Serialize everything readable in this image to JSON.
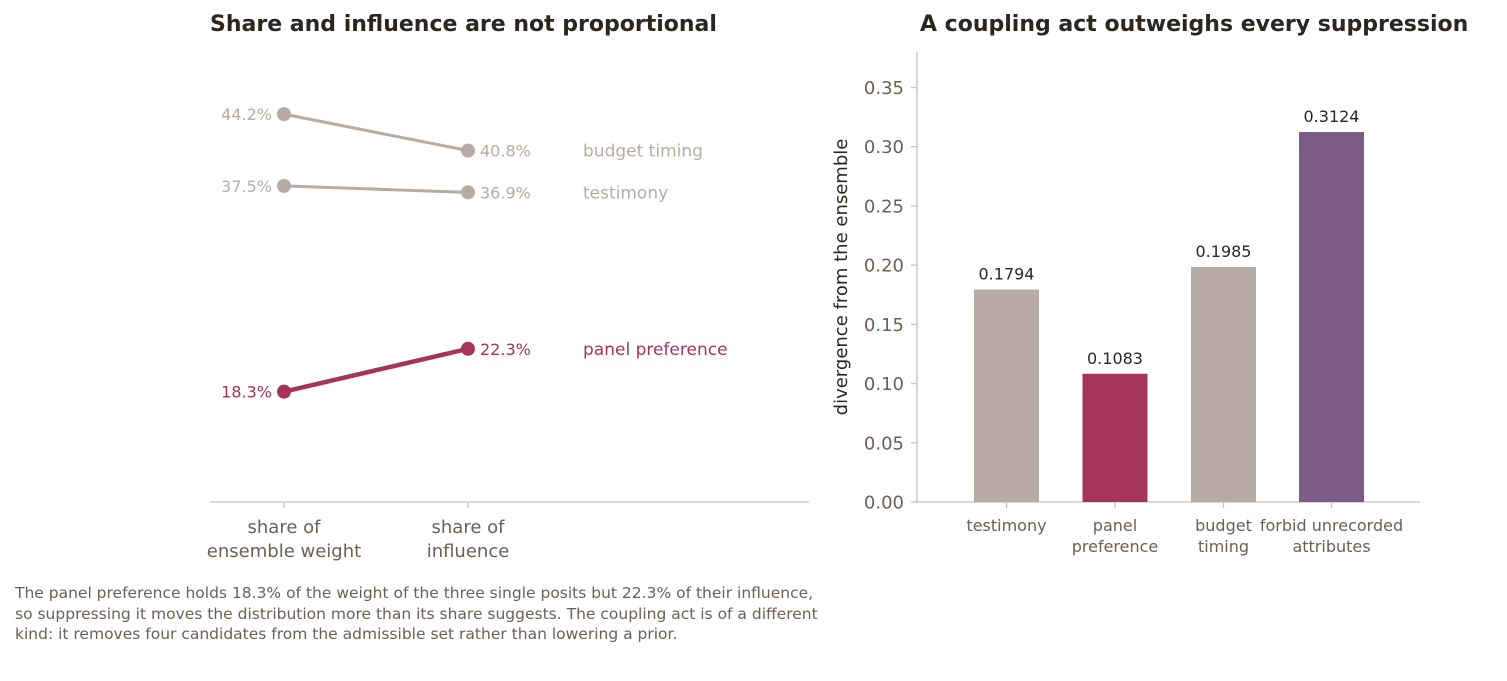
{
  "caption": "The panel preference holds 18.3% of the weight of the three single posits but 22.3% of their influence, so suppressing it moves the distribution more than its share suggests. The coupling act is of a different kind: it removes four candidates from the admissible set rather than lowering a prior.",
  "colors": {
    "muted": "#b8aba3",
    "accent": "#a5345b",
    "purple": "#7b5c87",
    "axis": "#c8c0bb",
    "text": "#2b2622",
    "tick_text": "#6b5f57"
  },
  "chart_data": [
    {
      "type": "slope",
      "title": "Share and influence are not proportional",
      "categories": [
        [
          "share of",
          "ensemble weight"
        ],
        [
          "share of",
          "influence"
        ]
      ],
      "series": [
        {
          "name": "budget timing",
          "values": [
            44.2,
            40.8
          ],
          "value_labels": [
            "44.2%",
            "40.8%"
          ],
          "highlight": false
        },
        {
          "name": "testimony",
          "values": [
            37.5,
            36.9
          ],
          "value_labels": [
            "37.5%",
            "36.9%"
          ],
          "highlight": false
        },
        {
          "name": "panel preference",
          "values": [
            18.3,
            22.3
          ],
          "value_labels": [
            "18.3%",
            "22.3%"
          ],
          "highlight": true
        }
      ],
      "ylim": [
        8,
        50
      ],
      "grid": false
    },
    {
      "type": "bar",
      "title": "A coupling act outweighs every suppression",
      "categories": [
        [
          "testimony"
        ],
        [
          "panel",
          "preference"
        ],
        [
          "budget",
          "timing"
        ],
        [
          "forbid unrecorded",
          "attributes"
        ]
      ],
      "values": [
        0.1794,
        0.1083,
        0.1985,
        0.3124
      ],
      "value_labels": [
        "0.1794",
        "0.1083",
        "0.1985",
        "0.3124"
      ],
      "bar_colors": [
        "#b8aba3",
        "#a5345b",
        "#b8aba3",
        "#7b5c87"
      ],
      "ylabel": "divergence from the ensemble",
      "ylim": [
        0,
        0.38
      ],
      "yticks": [
        0.0,
        0.05,
        0.1,
        0.15,
        0.2,
        0.25,
        0.3,
        0.35
      ],
      "ytick_labels": [
        "0.00",
        "0.05",
        "0.10",
        "0.15",
        "0.20",
        "0.25",
        "0.30",
        "0.35"
      ],
      "grid": false
    }
  ]
}
